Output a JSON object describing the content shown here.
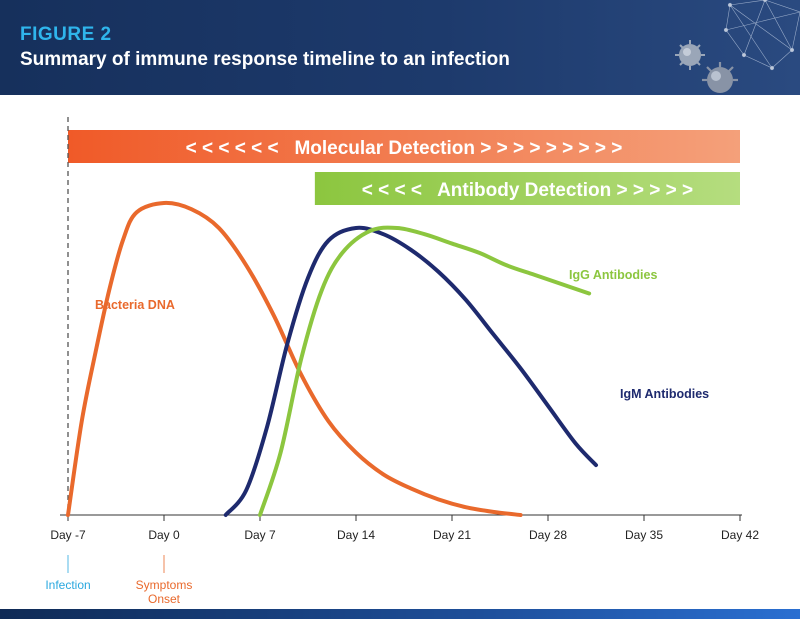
{
  "header": {
    "figure_label": "FIGURE 2",
    "title": "Summary of immune response timeline to an infection"
  },
  "bands": [
    {
      "text": "< < < < < <   Molecular Detection > > > > > > > > >",
      "color_start": "#f05a28",
      "color_end": "#f4a07a",
      "start_day": -7,
      "end_day": 42
    },
    {
      "text": "< < < <   Antibody Detection > > > > >",
      "color_start": "#8cc63f",
      "color_end": "#b5dd7f",
      "start_day": 11,
      "end_day": 42
    }
  ],
  "events": [
    {
      "label": "Infection",
      "day": -7,
      "color": "#2aa8df"
    },
    {
      "label": "Symptoms Onset",
      "line1": "Symptoms",
      "line2": "Onset",
      "day": 0,
      "color": "#e9692c"
    }
  ],
  "chart_data": {
    "type": "line",
    "title": "",
    "xlabel": "",
    "ylabel": "",
    "x_ticks": [
      {
        "day": -7,
        "label": "Day -7"
      },
      {
        "day": 0,
        "label": "Day 0"
      },
      {
        "day": 7,
        "label": "Day 7"
      },
      {
        "day": 14,
        "label": "Day 14"
      },
      {
        "day": 21,
        "label": "Day 21"
      },
      {
        "day": 28,
        "label": "Day 28"
      },
      {
        "day": 35,
        "label": "Day 35"
      },
      {
        "day": 42,
        "label": "Day 42"
      }
    ],
    "xlim": [
      -7,
      42
    ],
    "ylim": [
      0,
      1
    ],
    "y_axis_shown": false,
    "grid": false,
    "series": [
      {
        "name": "Bacteria DNA",
        "color": "#e9692c",
        "points": [
          [
            -7,
            0
          ],
          [
            -6,
            0.3
          ],
          [
            -5,
            0.52
          ],
          [
            -4,
            0.72
          ],
          [
            -3,
            0.88
          ],
          [
            -2,
            0.97
          ],
          [
            0,
            1.0
          ],
          [
            2,
            0.98
          ],
          [
            4,
            0.92
          ],
          [
            6,
            0.8
          ],
          [
            8,
            0.64
          ],
          [
            10,
            0.45
          ],
          [
            12,
            0.3
          ],
          [
            14,
            0.2
          ],
          [
            16,
            0.13
          ],
          [
            18,
            0.085
          ],
          [
            20,
            0.05
          ],
          [
            22,
            0.025
          ],
          [
            24,
            0.01
          ],
          [
            26,
            0.0
          ]
        ]
      },
      {
        "name": "IgM Antibodies",
        "color": "#1e2a6e",
        "points": [
          [
            4.5,
            0
          ],
          [
            6,
            0.08
          ],
          [
            7.5,
            0.28
          ],
          [
            9,
            0.55
          ],
          [
            10.5,
            0.76
          ],
          [
            12,
            0.88
          ],
          [
            14,
            0.92
          ],
          [
            16,
            0.9
          ],
          [
            18,
            0.85
          ],
          [
            20,
            0.78
          ],
          [
            22,
            0.69
          ],
          [
            24,
            0.58
          ],
          [
            26,
            0.47
          ],
          [
            28,
            0.35
          ],
          [
            30,
            0.23
          ],
          [
            31.5,
            0.16
          ]
        ]
      },
      {
        "name": "IgG Antibodies",
        "color": "#8cc63f",
        "points": [
          [
            7,
            0
          ],
          [
            8.5,
            0.2
          ],
          [
            10,
            0.5
          ],
          [
            11.5,
            0.72
          ],
          [
            13,
            0.84
          ],
          [
            15,
            0.91
          ],
          [
            17,
            0.92
          ],
          [
            19,
            0.9
          ],
          [
            21,
            0.87
          ],
          [
            23,
            0.84
          ],
          [
            25,
            0.8
          ],
          [
            27,
            0.77
          ],
          [
            29,
            0.74
          ],
          [
            31,
            0.71
          ]
        ]
      }
    ]
  }
}
